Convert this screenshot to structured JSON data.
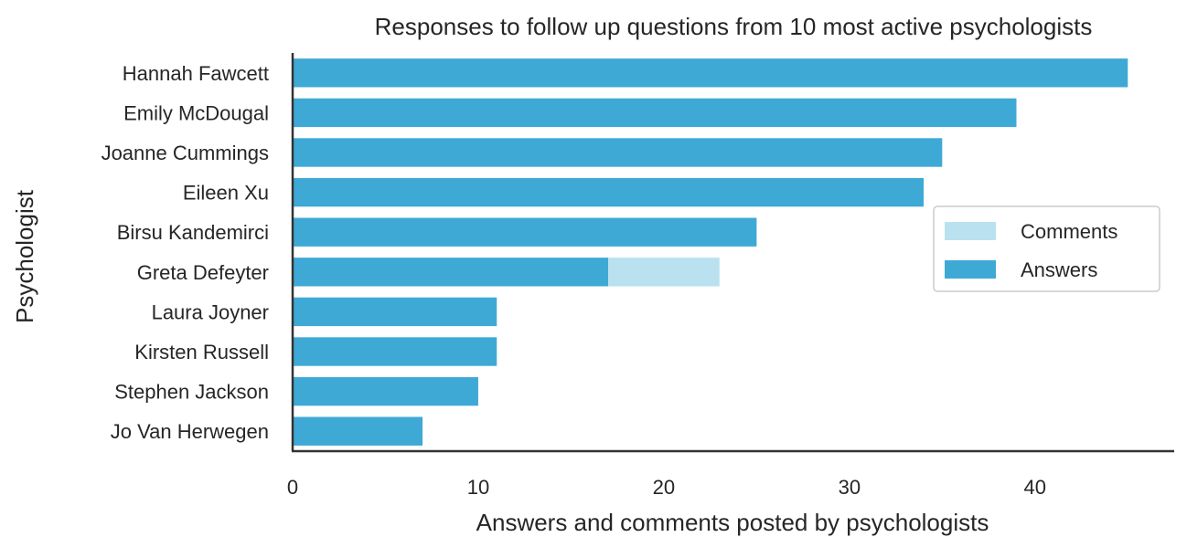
{
  "chart_data": {
    "type": "bar",
    "orientation": "horizontal",
    "stacked": true,
    "title": "Responses to follow up questions from 10 most active psychologists",
    "xlabel": "Answers and comments posted by psychologists",
    "ylabel": "Psychologist",
    "categories": [
      "Hannah Fawcett",
      "Emily McDougal",
      "Joanne Cummings",
      "Eileen Xu",
      "Birsu Kandemirci",
      "Greta Defeyter",
      "Laura Joyner",
      "Kirsten Russell",
      "Stephen Jackson",
      "Jo Van Herwegen"
    ],
    "series": [
      {
        "name": "Answers",
        "color": "#3fa9d6",
        "values": [
          45,
          39,
          35,
          34,
          25,
          17,
          11,
          11,
          10,
          7
        ]
      },
      {
        "name": "Comments",
        "color": "#b9e1ef",
        "values": [
          0,
          0,
          0,
          0,
          0,
          6,
          0,
          0,
          0,
          0
        ]
      }
    ],
    "xticks": [
      0,
      10,
      20,
      30,
      40
    ],
    "xlim": [
      0,
      47.5
    ],
    "grid": false,
    "legend": {
      "placement": "center-right",
      "entries": [
        "Comments",
        "Answers"
      ]
    }
  }
}
